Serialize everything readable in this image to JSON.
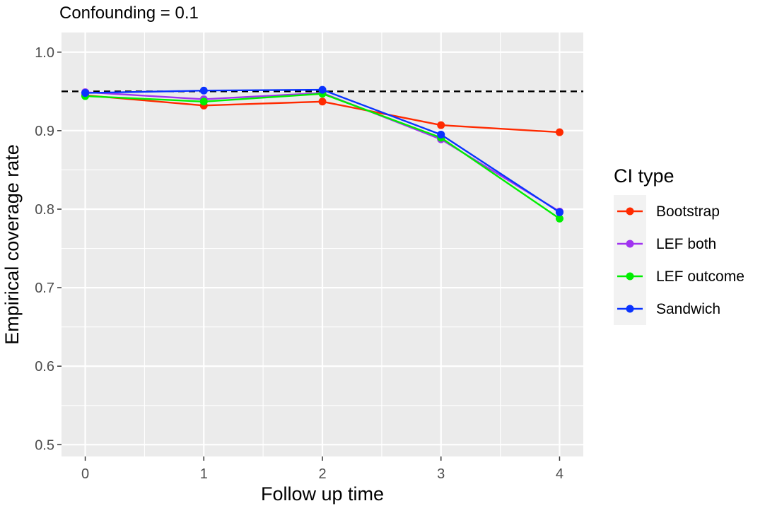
{
  "chart_data": {
    "type": "line",
    "title": "Confounding = 0.1",
    "xlabel": "Follow up time",
    "ylabel": "Empirical coverage rate",
    "x": [
      0,
      1,
      2,
      3,
      4
    ],
    "x_ticks": [
      "0",
      "1",
      "2",
      "3",
      "4"
    ],
    "y_ticks": [
      "0.5",
      "0.6",
      "0.7",
      "0.8",
      "0.9",
      "1.0"
    ],
    "xlim": [
      -0.2,
      4.2
    ],
    "ylim": [
      0.485,
      1.025
    ],
    "reference_line": {
      "y": 0.95,
      "style": "dashed",
      "color": "#000000"
    },
    "grid": true,
    "legend": {
      "title": "CI type",
      "position": "right"
    },
    "series": [
      {
        "name": "Bootstrap",
        "color": "#ff2a00",
        "values": [
          0.945,
          0.932,
          0.937,
          0.907,
          0.898
        ]
      },
      {
        "name": "LEF both",
        "color": "#a033f0",
        "values": [
          0.949,
          0.94,
          0.948,
          0.889,
          0.797
        ]
      },
      {
        "name": "LEF outcome",
        "color": "#00ee00",
        "values": [
          0.944,
          0.937,
          0.947,
          0.891,
          0.788
        ]
      },
      {
        "name": "Sandwich",
        "color": "#0a33ff",
        "values": [
          0.948,
          0.951,
          0.952,
          0.895,
          0.796
        ]
      }
    ]
  }
}
